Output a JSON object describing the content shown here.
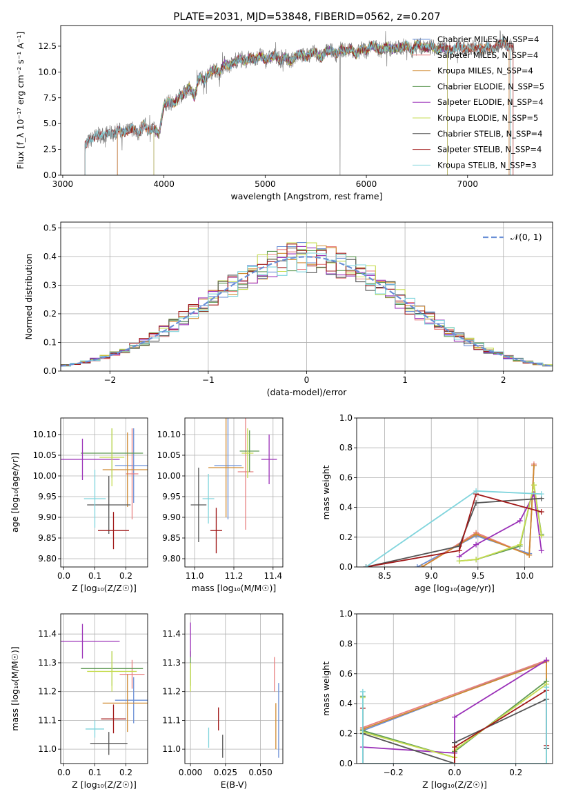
{
  "title": "PLATE=2031, MJD=53848, FIBERID=0562, z=0.207",
  "colors": {
    "Chabrier MILES": "#6a8fd6",
    "Salpeter MILES": "#e88080",
    "Kroupa MILES": "#d08a30",
    "Chabrier ELODIE": "#5f9a55",
    "Salpeter ELODIE": "#9a30b8",
    "Kroupa ELODIE": "#c6dc50",
    "Chabrier STELIB": "#555555",
    "Salpeter STELIB": "#a01818",
    "Kroupa STELIB": "#7fd4dc",
    "spectrum": "#808080",
    "gaussian": "#6a8fd6"
  },
  "chart_data": [
    {
      "id": "spectrum",
      "type": "line",
      "title": "PLATE=2031, MJD=53848, FIBERID=0562, z=0.207",
      "xlabel": "wavelength [Angstrom, rest frame]",
      "ylabel": "Flux [f_λ 10⁻¹⁷ erg cm⁻² s⁻¹ A⁻¹]",
      "xlim": [
        2980,
        7840
      ],
      "ylim": [
        0,
        14.5
      ],
      "xticks": [
        "3000",
        "4000",
        "5000",
        "6000",
        "7000"
      ],
      "yticks": [
        "0.0",
        "2.5",
        "5.0",
        "7.5",
        "10.0",
        "12.5"
      ],
      "spectrum_x": [
        3220,
        3250,
        3300,
        3350,
        3400,
        3450,
        3500,
        3550,
        3600,
        3650,
        3700,
        3750,
        3800,
        3850,
        3900,
        3950,
        4000,
        4050,
        4100,
        4150,
        4200,
        4250,
        4300,
        4350,
        4400,
        4450,
        4500,
        4550,
        4600,
        4650,
        4700,
        4750,
        4800,
        4850,
        4900,
        4950,
        5000,
        5050,
        5100,
        5150,
        5200,
        5250,
        5300,
        5350,
        5400,
        5450,
        5500,
        5550,
        5600,
        5650,
        5700,
        5750,
        5800,
        5850,
        5900,
        5950,
        6000,
        6050,
        6100,
        6150,
        6200,
        6250,
        6300,
        6350,
        6400,
        6450,
        6500,
        6550,
        6600,
        6650,
        6700,
        6750,
        6800,
        6850,
        6900,
        6950,
        7000,
        7050,
        7100,
        7150,
        7200,
        7250,
        7300,
        7350,
        7400,
        7450
      ],
      "spectrum_y": [
        2.9,
        3.2,
        3.6,
        3.9,
        3.8,
        4.1,
        4.0,
        4.4,
        4.1,
        4.3,
        4.6,
        4.0,
        5.0,
        4.3,
        4.6,
        3.9,
        6.8,
        7.1,
        6.9,
        7.6,
        7.9,
        8.6,
        7.5,
        9.6,
        9.2,
        9.9,
        10.3,
        10.0,
        10.8,
        10.6,
        11.0,
        11.3,
        11.0,
        11.4,
        11.2,
        11.6,
        11.2,
        11.4,
        11.6,
        11.1,
        11.5,
        10.9,
        11.6,
        11.8,
        11.4,
        11.8,
        11.9,
        11.3,
        12.0,
        12.1,
        11.7,
        12.2,
        12.0,
        12.3,
        11.6,
        12.3,
        12.0,
        12.6,
        12.3,
        12.1,
        12.5,
        12.2,
        12.3,
        12.4,
        12.6,
        12.0,
        12.8,
        12.4,
        12.3,
        12.5,
        12.1,
        12.4,
        12.2,
        12.1,
        12.5,
        12.3,
        12.2,
        12.4,
        12.3,
        12.2,
        12.5,
        12.1,
        12.6,
        12.9,
        12.4,
        12.6
      ],
      "legend": [
        "Chabrier MILES, N_SSP=4",
        "Salpeter MILES, N_SSP=4",
        "Kroupa MILES, N_SSP=4",
        "Chabrier ELODIE, N_SSP=5",
        "Salpeter ELODIE, N_SSP=4",
        "Kroupa ELODIE, N_SSP=5",
        "Chabrier STELIB, N_SSP=4",
        "Salpeter STELIB, N_SSP=4",
        "Kroupa STELIB, N_SSP=3"
      ],
      "model_ranges": [
        {
          "name": "Chabrier MILES",
          "start": 3540,
          "end": 7410
        },
        {
          "name": "Salpeter MILES",
          "start": 3540,
          "end": 7410
        },
        {
          "name": "Kroupa MILES",
          "start": 3540,
          "end": 7410
        },
        {
          "name": "Chabrier ELODIE",
          "start": 3900,
          "end": 6800
        },
        {
          "name": "Salpeter ELODIE",
          "start": 3900,
          "end": 6800
        },
        {
          "name": "Kroupa ELODIE",
          "start": 3900,
          "end": 6800
        },
        {
          "name": "Chabrier STELIB",
          "start": 3220,
          "end": 7420
        },
        {
          "name": "Salpeter STELIB",
          "start": 3220,
          "end": 7450
        },
        {
          "name": "Kroupa STELIB",
          "start": 3220,
          "end": 7420
        }
      ],
      "dip_x": 5740,
      "legend_position": "top-right"
    },
    {
      "id": "residuals",
      "type": "histogram",
      "xlabel": "(data-model)/error",
      "ylabel": "Normed distribution",
      "xlim": [
        -2.5,
        2.5
      ],
      "ylim": [
        0,
        0.52
      ],
      "xticks": [
        "−2",
        "−1",
        "0",
        "1",
        "2"
      ],
      "yticks": [
        "0.0",
        "0.1",
        "0.2",
        "0.3",
        "0.4",
        "0.5"
      ],
      "bins": [
        -2.5,
        -2.4,
        -2.3,
        -2.2,
        -2.1,
        -2.0,
        -1.9,
        -1.8,
        -1.7,
        -1.6,
        -1.5,
        -1.4,
        -1.3,
        -1.2,
        -1.1,
        -1.0,
        -0.9,
        -0.8,
        -0.7,
        -0.6,
        -0.5,
        -0.4,
        -0.3,
        -0.2,
        -0.1,
        0.0,
        0.1,
        0.2,
        0.3,
        0.4,
        0.5,
        0.6,
        0.7,
        0.8,
        0.9,
        1.0,
        1.1,
        1.2,
        1.3,
        1.4,
        1.5,
        1.6,
        1.7,
        1.8,
        1.9,
        2.0,
        2.1,
        2.2,
        2.3,
        2.4,
        2.5
      ],
      "gaussian_label": "𝒩(0, 1)",
      "legend_position": "top-right",
      "grid": true
    },
    {
      "id": "age_Z",
      "type": "errorbar",
      "xlabel": "Z [log₁₀(Z/Z☉)]",
      "ylabel": "age [log₁₀(age/yr)]",
      "xlim": [
        -0.01,
        0.27
      ],
      "ylim": [
        9.78,
        10.14
      ],
      "xticks": [
        "0.0",
        "0.1",
        "0.2"
      ],
      "yticks": [
        "9.80",
        "9.85",
        "9.90",
        "9.95",
        "10.00",
        "10.05",
        "10.10"
      ],
      "points": [
        {
          "name": "Chabrier MILES",
          "x": 0.225,
          "y": 10.025,
          "xerr": 0.06,
          "yerr": 0.09
        },
        {
          "name": "Salpeter MILES",
          "x": 0.22,
          "y": 10.005,
          "xerr": 0.02,
          "yerr": 0.11
        },
        {
          "name": "Kroupa MILES",
          "x": 0.205,
          "y": 10.015,
          "xerr": 0.08,
          "yerr": 0.09
        },
        {
          "name": "Chabrier ELODIE",
          "x": 0.155,
          "y": 10.055,
          "xerr": 0.1,
          "yerr": 0.06
        },
        {
          "name": "Salpeter ELODIE",
          "x": 0.06,
          "y": 10.04,
          "xerr": 0.12,
          "yerr": 0.05
        },
        {
          "name": "Kroupa ELODIE",
          "x": 0.155,
          "y": 10.045,
          "xerr": 0.04,
          "yerr": 0.07
        },
        {
          "name": "Chabrier STELIB",
          "x": 0.145,
          "y": 9.93,
          "xerr": 0.07,
          "yerr": 0.07
        },
        {
          "name": "Salpeter STELIB",
          "x": 0.16,
          "y": 9.868,
          "xerr": 0.05,
          "yerr": 0.045
        },
        {
          "name": "Kroupa STELIB",
          "x": 0.1,
          "y": 9.945,
          "xerr": 0.035,
          "yerr": 0.07
        }
      ],
      "grid": true
    },
    {
      "id": "age_mass",
      "type": "errorbar",
      "xlabel": "mass [log₁₀(M/M☉)]",
      "ylabel": "",
      "xlim": [
        10.95,
        11.45
      ],
      "ylim": [
        9.78,
        10.14
      ],
      "xticks": [
        "11.0",
        "11.2",
        "11.4"
      ],
      "yticks": [
        "9.80",
        "9.85",
        "9.90",
        "9.95",
        "10.00",
        "10.05",
        "10.10"
      ],
      "points": [
        {
          "name": "Chabrier MILES",
          "x": 11.17,
          "y": 10.025,
          "xerr": 0.07,
          "yerr": 0.13
        },
        {
          "name": "Salpeter MILES",
          "x": 11.26,
          "y": 10.01,
          "xerr": 0.04,
          "yerr": 0.14
        },
        {
          "name": "Kroupa MILES",
          "x": 11.16,
          "y": 10.02,
          "xerr": 0.09,
          "yerr": 0.12
        },
        {
          "name": "Chabrier ELODIE",
          "x": 11.28,
          "y": 10.06,
          "xerr": 0.05,
          "yerr": 0.05
        },
        {
          "name": "Salpeter ELODIE",
          "x": 11.38,
          "y": 10.04,
          "xerr": 0.04,
          "yerr": 0.06
        },
        {
          "name": "Kroupa ELODIE",
          "x": 11.27,
          "y": 10.055,
          "xerr": 0.03,
          "yerr": 0.06
        },
        {
          "name": "Chabrier STELIB",
          "x": 11.02,
          "y": 9.93,
          "xerr": 0.04,
          "yerr": 0.09
        },
        {
          "name": "Salpeter STELIB",
          "x": 11.11,
          "y": 9.868,
          "xerr": 0.03,
          "yerr": 0.055
        },
        {
          "name": "Kroupa STELIB",
          "x": 11.07,
          "y": 9.945,
          "xerr": 0.03,
          "yerr": 0.06
        }
      ],
      "grid": true
    },
    {
      "id": "massweight_age",
      "type": "line",
      "xlabel": "age [log₁₀(age/yr)]",
      "ylabel": "mass weight",
      "xlim": [
        8.2,
        10.3
      ],
      "ylim": [
        0,
        1.0
      ],
      "xticks": [
        "8.5",
        "9.0",
        "9.5",
        "10.0"
      ],
      "yticks": [
        "0.0",
        "0.2",
        "0.4",
        "0.6",
        "0.8",
        "1.0"
      ],
      "series": [
        {
          "name": "Chabrier MILES",
          "x": [
            8.85,
            9.48,
            10.05,
            10.1
          ],
          "y": [
            0.0,
            0.21,
            0.09,
            0.68
          ]
        },
        {
          "name": "Salpeter MILES",
          "x": [
            8.9,
            9.48,
            10.05,
            10.1
          ],
          "y": [
            0.0,
            0.23,
            0.08,
            0.69
          ]
        },
        {
          "name": "Kroupa MILES",
          "x": [
            8.9,
            9.48,
            10.05,
            10.1
          ],
          "y": [
            0.0,
            0.22,
            0.08,
            0.68
          ]
        },
        {
          "name": "Chabrier ELODIE",
          "x": [
            9.3,
            9.48,
            9.95,
            10.1,
            10.18
          ],
          "y": [
            0.04,
            0.05,
            0.14,
            0.55,
            0.22
          ]
        },
        {
          "name": "Salpeter ELODIE",
          "x": [
            9.3,
            9.48,
            9.95,
            10.1,
            10.18
          ],
          "y": [
            0.07,
            0.15,
            0.31,
            0.49,
            0.11
          ]
        },
        {
          "name": "Kroupa ELODIE",
          "x": [
            9.3,
            9.48,
            9.95,
            10.1,
            10.18
          ],
          "y": [
            0.04,
            0.05,
            0.15,
            0.55,
            0.21
          ]
        },
        {
          "name": "Chabrier STELIB",
          "x": [
            8.3,
            9.3,
            9.48,
            10.18
          ],
          "y": [
            0.0,
            0.14,
            0.43,
            0.46
          ]
        },
        {
          "name": "Salpeter STELIB",
          "x": [
            8.3,
            9.3,
            9.48,
            10.18
          ],
          "y": [
            0.0,
            0.11,
            0.49,
            0.37
          ]
        },
        {
          "name": "Kroupa STELIB",
          "x": [
            8.3,
            9.48,
            10.18
          ],
          "y": [
            0.0,
            0.51,
            0.49
          ]
        }
      ],
      "grid": true
    },
    {
      "id": "mass_Z",
      "type": "errorbar",
      "xlabel": "Z [log₁₀(Z/Z☉)]",
      "ylabel": "mass [log₁₀(M/M☉)]",
      "xlim": [
        -0.01,
        0.27
      ],
      "ylim": [
        10.95,
        11.47
      ],
      "xticks": [
        "0.0",
        "0.1",
        "0.2"
      ],
      "yticks": [
        "11.0",
        "11.1",
        "11.2",
        "11.3",
        "11.4"
      ],
      "points": [
        {
          "name": "Chabrier MILES",
          "x": 0.225,
          "y": 11.17,
          "xerr": 0.06,
          "yerr": 0.08
        },
        {
          "name": "Salpeter MILES",
          "x": 0.22,
          "y": 11.26,
          "xerr": 0.04,
          "yerr": 0.05
        },
        {
          "name": "Kroupa MILES",
          "x": 0.205,
          "y": 11.16,
          "xerr": 0.08,
          "yerr": 0.1
        },
        {
          "name": "Chabrier ELODIE",
          "x": 0.155,
          "y": 11.28,
          "xerr": 0.1,
          "yerr": 0.06
        },
        {
          "name": "Salpeter ELODIE",
          "x": 0.06,
          "y": 11.375,
          "xerr": 0.12,
          "yerr": 0.06
        },
        {
          "name": "Kroupa ELODIE",
          "x": 0.155,
          "y": 11.27,
          "xerr": 0.08,
          "yerr": 0.07
        },
        {
          "name": "Chabrier STELIB",
          "x": 0.145,
          "y": 11.02,
          "xerr": 0.06,
          "yerr": 0.04
        },
        {
          "name": "Salpeter STELIB",
          "x": 0.16,
          "y": 11.105,
          "xerr": 0.04,
          "yerr": 0.05
        },
        {
          "name": "Kroupa STELIB",
          "x": 0.1,
          "y": 11.07,
          "xerr": 0.03,
          "yerr": 0.03
        }
      ],
      "grid": true
    },
    {
      "id": "mass_ebv",
      "type": "errorbar",
      "xlabel": "E(B-V)",
      "ylabel": "",
      "xlim": [
        -0.004,
        0.066
      ],
      "ylim": [
        10.95,
        11.47
      ],
      "xticks": [
        "0.000",
        "0.025",
        "0.050"
      ],
      "yticks": [
        "11.0",
        "11.1",
        "11.2",
        "11.3",
        "11.4"
      ],
      "points": [
        {
          "name": "Chabrier MILES",
          "x": 0.063,
          "y": 11.1,
          "xerr": 0.0,
          "yerr": 0.13
        },
        {
          "name": "Salpeter MILES",
          "x": 0.06,
          "y": 11.26,
          "xerr": 0.0,
          "yerr": 0.06
        },
        {
          "name": "Kroupa MILES",
          "x": 0.061,
          "y": 11.08,
          "xerr": 0.0,
          "yerr": 0.08
        },
        {
          "name": "Chabrier ELODIE",
          "x": 0.0,
          "y": 11.28,
          "xerr": 0.0,
          "yerr": 0.06
        },
        {
          "name": "Salpeter ELODIE",
          "x": 0.0,
          "y": 11.38,
          "xerr": 0.0,
          "yerr": 0.06
        },
        {
          "name": "Kroupa ELODIE",
          "x": 0.0,
          "y": 11.25,
          "xerr": 0.0,
          "yerr": 0.05
        },
        {
          "name": "Chabrier STELIB",
          "x": 0.023,
          "y": 11.01,
          "xerr": 0.0,
          "yerr": 0.04
        },
        {
          "name": "Salpeter STELIB",
          "x": 0.02,
          "y": 11.105,
          "xerr": 0.0,
          "yerr": 0.04
        },
        {
          "name": "Kroupa STELIB",
          "x": 0.013,
          "y": 11.04,
          "xerr": 0.0,
          "yerr": 0.035
        }
      ],
      "grid": true
    },
    {
      "id": "massweight_Z",
      "type": "line",
      "xlabel": "Z [log₁₀(Z/Z☉)]",
      "ylabel": "mass weight",
      "xlim": [
        -0.32,
        0.32
      ],
      "ylim": [
        0,
        1.0
      ],
      "xticks": [
        "−0.2",
        "0.0",
        "0.2"
      ],
      "yticks": [
        "0.0",
        "0.2",
        "0.4",
        "0.6",
        "0.8",
        "1.0"
      ],
      "series": [
        {
          "name": "Chabrier MILES",
          "x": [
            -0.3,
            0.3
          ],
          "y": [
            0.22,
            0.69
          ]
        },
        {
          "name": "Salpeter MILES",
          "x": [
            -0.3,
            0.3
          ],
          "y": [
            0.24,
            0.69
          ]
        },
        {
          "name": "Kroupa MILES",
          "x": [
            -0.3,
            0.3,
            0.3
          ],
          "y": [
            0.23,
            0.68,
            0.0
          ]
        },
        {
          "name": "Chabrier ELODIE",
          "x": [
            -0.3,
            -0.3,
            0.0,
            0.0,
            0.3
          ],
          "y": [
            0.45,
            0.22,
            0.04,
            0.08,
            0.55
          ]
        },
        {
          "name": "Salpeter ELODIE",
          "x": [
            -0.3,
            0.0,
            0.0,
            0.3
          ],
          "y": [
            0.11,
            0.07,
            0.31,
            0.69
          ]
        },
        {
          "name": "Kroupa ELODIE",
          "x": [
            -0.3,
            -0.3,
            0.0,
            0.0,
            0.3
          ],
          "y": [
            0.44,
            0.21,
            0.04,
            0.09,
            0.53
          ]
        },
        {
          "name": "Chabrier STELIB",
          "x": [
            -0.3,
            -0.3,
            0.0,
            0.0,
            0.3,
            0.3
          ],
          "y": [
            0.0,
            0.2,
            0.0,
            0.14,
            0.43,
            0.1
          ]
        },
        {
          "name": "Salpeter STELIB",
          "x": [
            -0.3,
            -0.3,
            0.0,
            0.0,
            0.3,
            0.3
          ],
          "y": [
            0.37,
            0.0,
            0.0,
            0.11,
            0.49,
            0.12
          ]
        },
        {
          "name": "Kroupa STELIB",
          "x": [
            -0.3,
            -0.3,
            0.3,
            0.3
          ],
          "y": [
            0.48,
            0.0,
            0.0,
            0.51
          ]
        }
      ],
      "grid": true
    }
  ]
}
